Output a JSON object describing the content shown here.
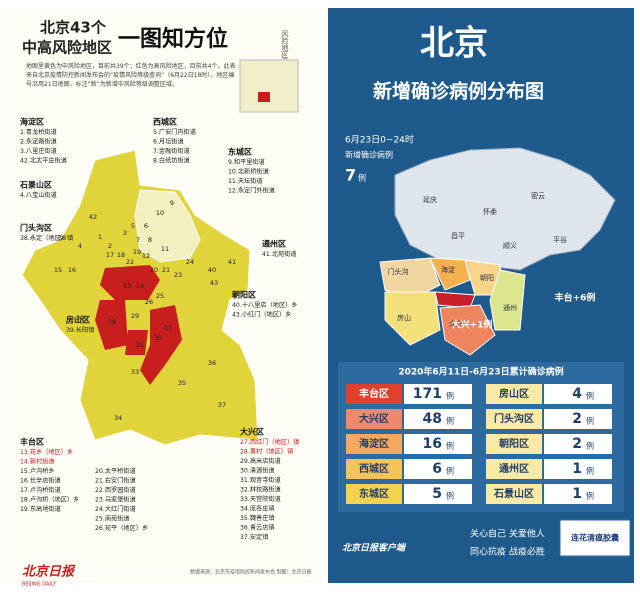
{
  "left": {
    "title_line1": "北京43个",
    "title_line2": "中高风险地区",
    "title_big": "一图知方位",
    "side_label": "风险地区示意图",
    "intro": "地图里黄色为中风险地区，目前共39个；红色为高风险地区，目前共4个。此表来自北京疫情防控新闻发布会的“疫情风险等级查询”（6月22日18时）。地区编号沿用21日地图，标注“新”为新增中风险等级调整区域。",
    "districts": [
      {
        "name": "海淀区",
        "items": [
          "1.青龙桥街道",
          "2.永定路街道",
          "3.八里庄街道",
          "42.北太平庄街道"
        ]
      },
      {
        "name": "石景山区",
        "items": [
          "4.八宝山街道"
        ]
      },
      {
        "name": "西城区",
        "items": [
          "5.广安门内街道",
          "6.月坛街道",
          "7.金融街街道",
          "8.白纸坊街道"
        ]
      },
      {
        "name": "东城区",
        "items": [
          "9.和平里街道",
          "10.北新桥街道",
          "11.天坛街道",
          "12.永定门外街道"
        ]
      },
      {
        "name": "门头沟区",
        "items": [
          "38.永定（地区）镇"
        ]
      },
      {
        "name": "通州区",
        "items": [
          "41.北苑街道"
        ]
      },
      {
        "name": "房山区",
        "items": [
          "39.长阳镇"
        ]
      },
      {
        "name": "朝阳区",
        "items": [
          "40.十八里店（地区）乡",
          "43.小红门（地区）乡"
        ]
      },
      {
        "name": "丰台区",
        "items": [
          {
            "text": "13.花乡（地区）乡",
            "color": "#d0121b"
          },
          {
            "text": "14.新村街道",
            "color": "#d0121b"
          },
          "15.卢沟桥乡",
          "16.长辛店街道",
          "17.卢沟桥街道",
          "18.卢沟桥（地区）乡",
          "19.东高地街道",
          "20.太平桥街道",
          "21.右安门街道",
          "22.西罗园街道",
          "23.马家堡街道",
          "24.大红门街道",
          "25.南苑街道",
          "26.宛平（地区）乡"
        ]
      },
      {
        "name": "大兴区",
        "items": [
          {
            "text": "27.西红门（地区）镇",
            "color": "#d0121b"
          },
          {
            "text": "28.黄村（地区）镇",
            "color": "#d0121b"
          },
          "29.高米店街道",
          "30.清源街道",
          "31.观音寺街道",
          "32.林校路街道",
          "33.天宫院街道",
          "34.庞各庄镇",
          "35.魏善庄镇",
          "36.青云店镇",
          "37.安定镇"
        ]
      }
    ],
    "map_labels": [
      "42",
      "9",
      "10",
      "1",
      "2",
      "3",
      "5",
      "6",
      "7",
      "8",
      "11",
      "12",
      "17",
      "18",
      "19",
      "4",
      "38",
      "15",
      "16",
      "20",
      "21",
      "22",
      "23",
      "24",
      "40",
      "43",
      "41",
      "13",
      "14",
      "25",
      "26",
      "28",
      "29",
      "27",
      "30",
      "31",
      "39",
      "33",
      "34",
      "35",
      "36",
      "37"
    ],
    "footer_logo": "北京日报",
    "footer_logo_en": "BEIJING DAILY",
    "footer_credit": "数据来源：北京市疫情防控新闻发布会 制图：北京日报"
  },
  "right": {
    "title": "北京",
    "subtitle": "新增确诊病例分布图",
    "date": "6月23日0~24时",
    "new_label": "新增确诊病例",
    "new_count": "7",
    "unit": "例",
    "map_labels": [
      "延庆",
      "怀柔",
      "密云",
      "昌平",
      "顺义",
      "平谷",
      "门头沟",
      "海淀",
      "朝阳",
      "房山",
      "通州",
      "大兴"
    ],
    "callouts": [
      "丰台+6例",
      "大兴+1例"
    ],
    "table": {
      "title": "2020年6月11日-6月23日累计确诊病例",
      "unit": "例",
      "rows": [
        {
          "name": "丰台区",
          "value": "171",
          "color": "#e2402f"
        },
        {
          "name": "房山区",
          "value": "4",
          "color": "#fbe9a6"
        },
        {
          "name": "大兴区",
          "value": "48",
          "color": "#f0896c"
        },
        {
          "name": "门头沟区",
          "value": "2",
          "color": "#fbe9a6"
        },
        {
          "name": "海淀区",
          "value": "16",
          "color": "#f4a95e"
        },
        {
          "name": "朝阳区",
          "value": "2",
          "color": "#fbe9a6"
        },
        {
          "name": "西城区",
          "value": "6",
          "color": "#f6c35a"
        },
        {
          "name": "通州区",
          "value": "1",
          "color": "#fbe9a6"
        },
        {
          "name": "东城区",
          "value": "5",
          "color": "#f3d24e"
        },
        {
          "name": "石景山区",
          "value": "1",
          "color": "#fbe9a6"
        }
      ]
    },
    "slogan1": "关心自己 关爱他人",
    "slogan2": "同心抗疫 战疫必胜",
    "logo": "北京日报客户端",
    "product": "连花清瘟胶囊"
  }
}
